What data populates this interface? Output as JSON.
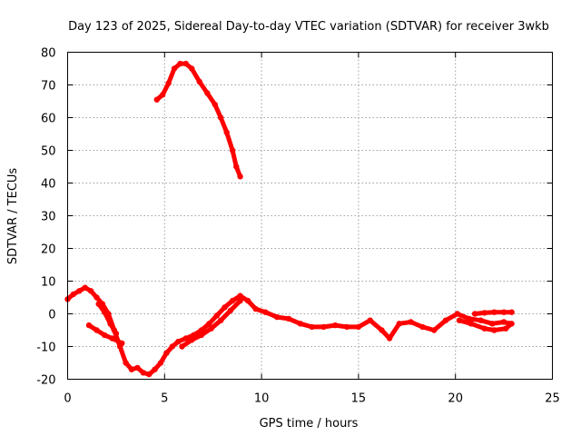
{
  "chart_data": {
    "type": "line",
    "title": "Day 123 of 2025, Sidereal Day-to-day VTEC variation (SDTVAR) for receiver 3wkb",
    "xlabel": "GPS time / hours",
    "ylabel": "SDTVAR / TECUs",
    "xlim": [
      0,
      25
    ],
    "ylim": [
      -20,
      80
    ],
    "xticks": [
      0,
      5,
      10,
      15,
      20,
      25
    ],
    "yticks": [
      -20,
      -10,
      0,
      10,
      20,
      30,
      40,
      50,
      60,
      70,
      80
    ],
    "grid": true,
    "color": "#ff0000",
    "series": [
      {
        "name": "satellite-track-1",
        "points": [
          [
            0,
            4.5
          ],
          [
            0.3,
            6
          ],
          [
            0.6,
            7
          ],
          [
            0.9,
            8
          ],
          [
            1.2,
            7
          ],
          [
            1.5,
            5
          ],
          [
            1.8,
            3
          ],
          [
            2.1,
            0
          ],
          [
            2.4,
            -5
          ],
          [
            2.7,
            -10
          ],
          [
            3.0,
            -15
          ],
          [
            3.3,
            -17
          ],
          [
            3.6,
            -16.5
          ],
          [
            3.9,
            -18
          ],
          [
            4.2,
            -18.5
          ],
          [
            4.5,
            -17
          ],
          [
            4.8,
            -15
          ],
          [
            5.1,
            -12
          ],
          [
            5.4,
            -10
          ],
          [
            5.7,
            -8.5
          ],
          [
            6.1,
            -7.5
          ],
          [
            6.5,
            -6.5
          ],
          [
            6.9,
            -5
          ],
          [
            7.3,
            -3
          ],
          [
            7.7,
            -0.5
          ],
          [
            8.1,
            2
          ],
          [
            8.5,
            4
          ],
          [
            8.9,
            5.5
          ],
          [
            9.3,
            4
          ],
          [
            9.7,
            1.5
          ],
          [
            10.2,
            0.5
          ],
          [
            10.8,
            -1
          ],
          [
            11.4,
            -1.5
          ],
          [
            12.0,
            -3
          ],
          [
            12.6,
            -4
          ],
          [
            13.2,
            -4
          ],
          [
            13.8,
            -3.5
          ],
          [
            14.4,
            -4
          ],
          [
            15.0,
            -4
          ],
          [
            15.6,
            -2
          ],
          [
            16.2,
            -5
          ],
          [
            16.6,
            -7.5
          ],
          [
            17.1,
            -3
          ],
          [
            17.7,
            -2.5
          ],
          [
            18.3,
            -4
          ],
          [
            18.9,
            -5
          ],
          [
            19.5,
            -2
          ],
          [
            20.1,
            0
          ],
          [
            20.7,
            -1.5
          ],
          [
            21.3,
            -2
          ],
          [
            21.9,
            -3
          ],
          [
            22.5,
            -2.5
          ],
          [
            22.8,
            -3
          ]
        ]
      },
      {
        "name": "satellite-track-2",
        "points": [
          [
            1.1,
            -3.5
          ],
          [
            1.5,
            -5
          ],
          [
            1.9,
            -6.5
          ],
          [
            2.3,
            -7.5
          ],
          [
            2.8,
            -9
          ]
        ]
      },
      {
        "name": "satellite-track-3",
        "points": [
          [
            1.6,
            3
          ],
          [
            1.9,
            0.5
          ],
          [
            2.2,
            -3
          ],
          [
            2.5,
            -6
          ]
        ]
      },
      {
        "name": "satellite-track-4",
        "points": [
          [
            5.9,
            -10
          ],
          [
            6.4,
            -8
          ],
          [
            6.9,
            -6.5
          ],
          [
            7.4,
            -4.5
          ],
          [
            7.9,
            -2
          ],
          [
            8.4,
            1
          ],
          [
            8.9,
            4
          ]
        ]
      },
      {
        "name": "satellite-track-5",
        "points": [
          [
            20.2,
            -2
          ],
          [
            20.8,
            -3
          ],
          [
            21.5,
            -4.5
          ],
          [
            22.0,
            -5
          ],
          [
            22.6,
            -4.5
          ],
          [
            22.9,
            -3
          ]
        ]
      },
      {
        "name": "satellite-track-6",
        "points": [
          [
            21.0,
            0
          ],
          [
            21.5,
            0.3
          ],
          [
            22.0,
            0.5
          ],
          [
            22.5,
            0.5
          ],
          [
            22.9,
            0.5
          ]
        ]
      },
      {
        "name": "satellite-track-7",
        "points": [
          [
            4.6,
            65.5
          ],
          [
            4.9,
            67
          ],
          [
            5.2,
            70.5
          ],
          [
            5.5,
            75
          ],
          [
            5.8,
            76.5
          ],
          [
            6.1,
            76.5
          ],
          [
            6.4,
            75
          ],
          [
            6.8,
            71
          ],
          [
            7.2,
            67.5
          ],
          [
            7.6,
            64
          ],
          [
            7.9,
            60
          ],
          [
            8.2,
            55.5
          ],
          [
            8.5,
            50
          ],
          [
            8.7,
            45
          ],
          [
            8.9,
            42
          ]
        ]
      }
    ]
  }
}
